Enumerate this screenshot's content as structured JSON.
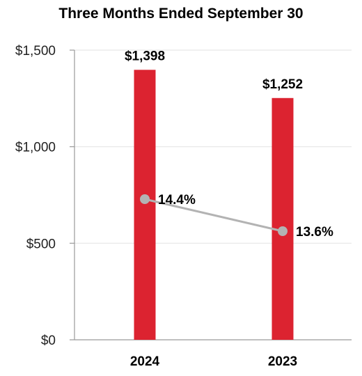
{
  "chart_data": {
    "type": "bar",
    "title": "Three Months Ended September 30",
    "categories": [
      "2024",
      "2023"
    ],
    "values": [
      1398,
      1252
    ],
    "value_labels": [
      "$1,398",
      "$1,252"
    ],
    "ylim": [
      0,
      1500
    ],
    "yticks": [
      0,
      500,
      1000,
      1500
    ],
    "ytick_labels": [
      "$0",
      "$500",
      "$1,000",
      "$1,500"
    ],
    "grid": true,
    "line_series": {
      "values": [
        14.4,
        13.6
      ],
      "labels": [
        "14.4%",
        "13.6%"
      ]
    },
    "colors": {
      "bar": "#dc2330",
      "line": "#b3b3b3",
      "grid": "#e6e6e6",
      "axis": "#999999"
    }
  }
}
